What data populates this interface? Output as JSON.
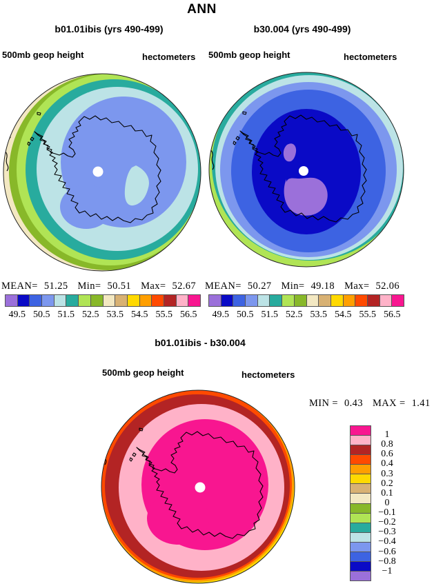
{
  "title": "ANN",
  "colors": {
    "purple": "#9b70da",
    "darkblue": "#0a0ac6",
    "royalblue": "#3d63e2",
    "cornflower": "#7c97ee",
    "palecyan": "#bce3e6",
    "teal": "#28ab9e",
    "lightgreen": "#b0e455",
    "olive": "#88b829",
    "paletan": "#f3e8c2",
    "tan": "#d8b173",
    "yellow": "#ffd900",
    "orange": "#ff9f00",
    "orangered": "#ff4a00",
    "darkred": "#b32424",
    "pink": "#ffb2c8",
    "magenta": "#f81690",
    "coastline": "#000000",
    "pole_dot": "#ffffff",
    "map_outline": "#222222"
  },
  "height_palette_order": [
    "purple",
    "darkblue",
    "royalblue",
    "cornflower",
    "palecyan",
    "teal",
    "lightgreen",
    "olive",
    "paletan",
    "tan",
    "yellow",
    "orange",
    "orangered",
    "darkred",
    "pink",
    "magenta"
  ],
  "diff_palette_top_to_bottom": [
    "magenta",
    "pink",
    "darkred",
    "orangered",
    "orange",
    "yellow",
    "tan",
    "paletan",
    "olive",
    "lightgreen",
    "teal",
    "palecyan",
    "cornflower",
    "royalblue",
    "darkblue",
    "purple"
  ],
  "panels": {
    "left": {
      "title": "b01.01ibis (yrs 490-499)",
      "field_label": "500mb geop height",
      "units_label": "hectometers",
      "stats": {
        "mean_label": "MEAN=",
        "mean_value": "51.25",
        "min_label": "Min=",
        "min_value": "50.51",
        "max_label": "Max=",
        "max_value": "52.67"
      },
      "ticks": [
        "49.5",
        "50.5",
        "51.5",
        "52.5",
        "53.5",
        "54.5",
        "55.5",
        "56.5"
      ]
    },
    "right": {
      "title": "b30.004 (yrs 490-499)",
      "field_label": "500mb geop height",
      "units_label": "hectometers",
      "stats": {
        "mean_label": "MEAN=",
        "mean_value": "50.27",
        "min_label": "Min=",
        "min_value": "49.18",
        "max_label": "Max=",
        "max_value": "52.06"
      },
      "ticks": [
        "49.5",
        "50.5",
        "51.5",
        "52.5",
        "53.5",
        "54.5",
        "55.5",
        "56.5"
      ]
    },
    "diff": {
      "title": "b01.01ibis - b30.004",
      "field_label": "500mb geop height",
      "units_label": "hectometers",
      "stats": {
        "min_label": "MIN =",
        "min_value": "0.43",
        "max_label": "MAX =",
        "max_value": "1.41"
      },
      "ticks": [
        "1",
        "0.8",
        "0.6",
        "0.4",
        "0.3",
        "0.2",
        "0.1",
        "0",
        "−0.1",
        "−0.2",
        "−0.3",
        "−0.4",
        "−0.6",
        "−0.8",
        "−1"
      ]
    }
  },
  "chart_data": [
    {
      "type": "heatmap",
      "chart_kind": "filled-contour map, south polar stereographic (Antarctica)",
      "title": "b01.01ibis (yrs 490-499)",
      "suptitle": "ANN",
      "variable": "500mb geop height",
      "units": "hectometers",
      "stats": {
        "mean": 51.25,
        "min": 50.51,
        "max": 52.67
      },
      "contour_levels": [
        49.5,
        50,
        50.5,
        51,
        51.5,
        52,
        52.5,
        53,
        53.5,
        54,
        54.5,
        55,
        55.5,
        56,
        56.5
      ],
      "labeled_ticks": [
        49.5,
        50.5,
        51.5,
        52.5,
        53.5,
        54.5,
        55.5,
        56.5
      ],
      "band_colors_low_to_high": [
        "#9b70da",
        "#0a0ac6",
        "#3d63e2",
        "#7c97ee",
        "#bce3e6",
        "#28ab9e",
        "#b0e455",
        "#88b829",
        "#f3e8c2",
        "#d8b173",
        "#ffd900",
        "#ff9f00",
        "#ff4a00",
        "#b32424",
        "#ffb2c8",
        "#f81690"
      ],
      "legend_position": "bottom",
      "value_pattern": "minimum ~50.5-51 hm (cornflower) centered near pole, increasing outward to ~53-53.5 hm (pale tan) at outer lower-left edge"
    },
    {
      "type": "heatmap",
      "chart_kind": "filled-contour map, south polar stereographic (Antarctica)",
      "title": "b30.004 (yrs 490-499)",
      "suptitle": "ANN",
      "variable": "500mb geop height",
      "units": "hectometers",
      "stats": {
        "mean": 50.27,
        "min": 49.18,
        "max": 52.06
      },
      "contour_levels": [
        49.5,
        50,
        50.5,
        51,
        51.5,
        52,
        52.5,
        53,
        53.5,
        54,
        54.5,
        55,
        55.5,
        56,
        56.5
      ],
      "labeled_ticks": [
        49.5,
        50.5,
        51.5,
        52.5,
        53.5,
        54.5,
        55.5,
        56.5
      ],
      "band_colors_low_to_high": [
        "#9b70da",
        "#0a0ac6",
        "#3d63e2",
        "#7c97ee",
        "#bce3e6",
        "#28ab9e",
        "#b0e455",
        "#88b829",
        "#f3e8c2",
        "#d8b173",
        "#ffd900",
        "#ff9f00",
        "#ff4a00",
        "#b32424",
        "#ffb2c8",
        "#f81690"
      ],
      "legend_position": "bottom",
      "value_pattern": "minimum <49.5 hm (purple patches) inside dark-blue core over the continent, increasing outward to ~52-52.5 hm (light green) at outer left edge"
    },
    {
      "type": "heatmap",
      "chart_kind": "filled-contour difference map, south polar stereographic (Antarctica)",
      "title": "b01.01ibis - b30.004",
      "variable": "500mb geop height",
      "units": "hectometers",
      "stats": {
        "min": 0.43,
        "max": 1.41
      },
      "contour_levels": [
        -1,
        -0.8,
        -0.6,
        -0.4,
        -0.3,
        -0.2,
        -0.1,
        0,
        0.1,
        0.2,
        0.3,
        0.4,
        0.6,
        0.8,
        1
      ],
      "band_colors_low_to_high": [
        "#9b70da",
        "#0a0ac6",
        "#3d63e2",
        "#7c97ee",
        "#bce3e6",
        "#28ab9e",
        "#b0e455",
        "#88b829",
        "#f3e8c2",
        "#d8b173",
        "#ffd900",
        "#ff9f00",
        "#ff4a00",
        "#b32424",
        "#ffb2c8",
        "#f81690"
      ],
      "legend_position": "right",
      "value_pattern": "difference >1 hm (magenta) over pole/continent, decreasing outward through 0.8-1 (pink), 0.6-0.8 (dark red), 0.4-0.6 (orange-red), 0.3-0.4 (orange) to 0.2-0.3 (yellow sliver) at lower-right edge"
    }
  ]
}
